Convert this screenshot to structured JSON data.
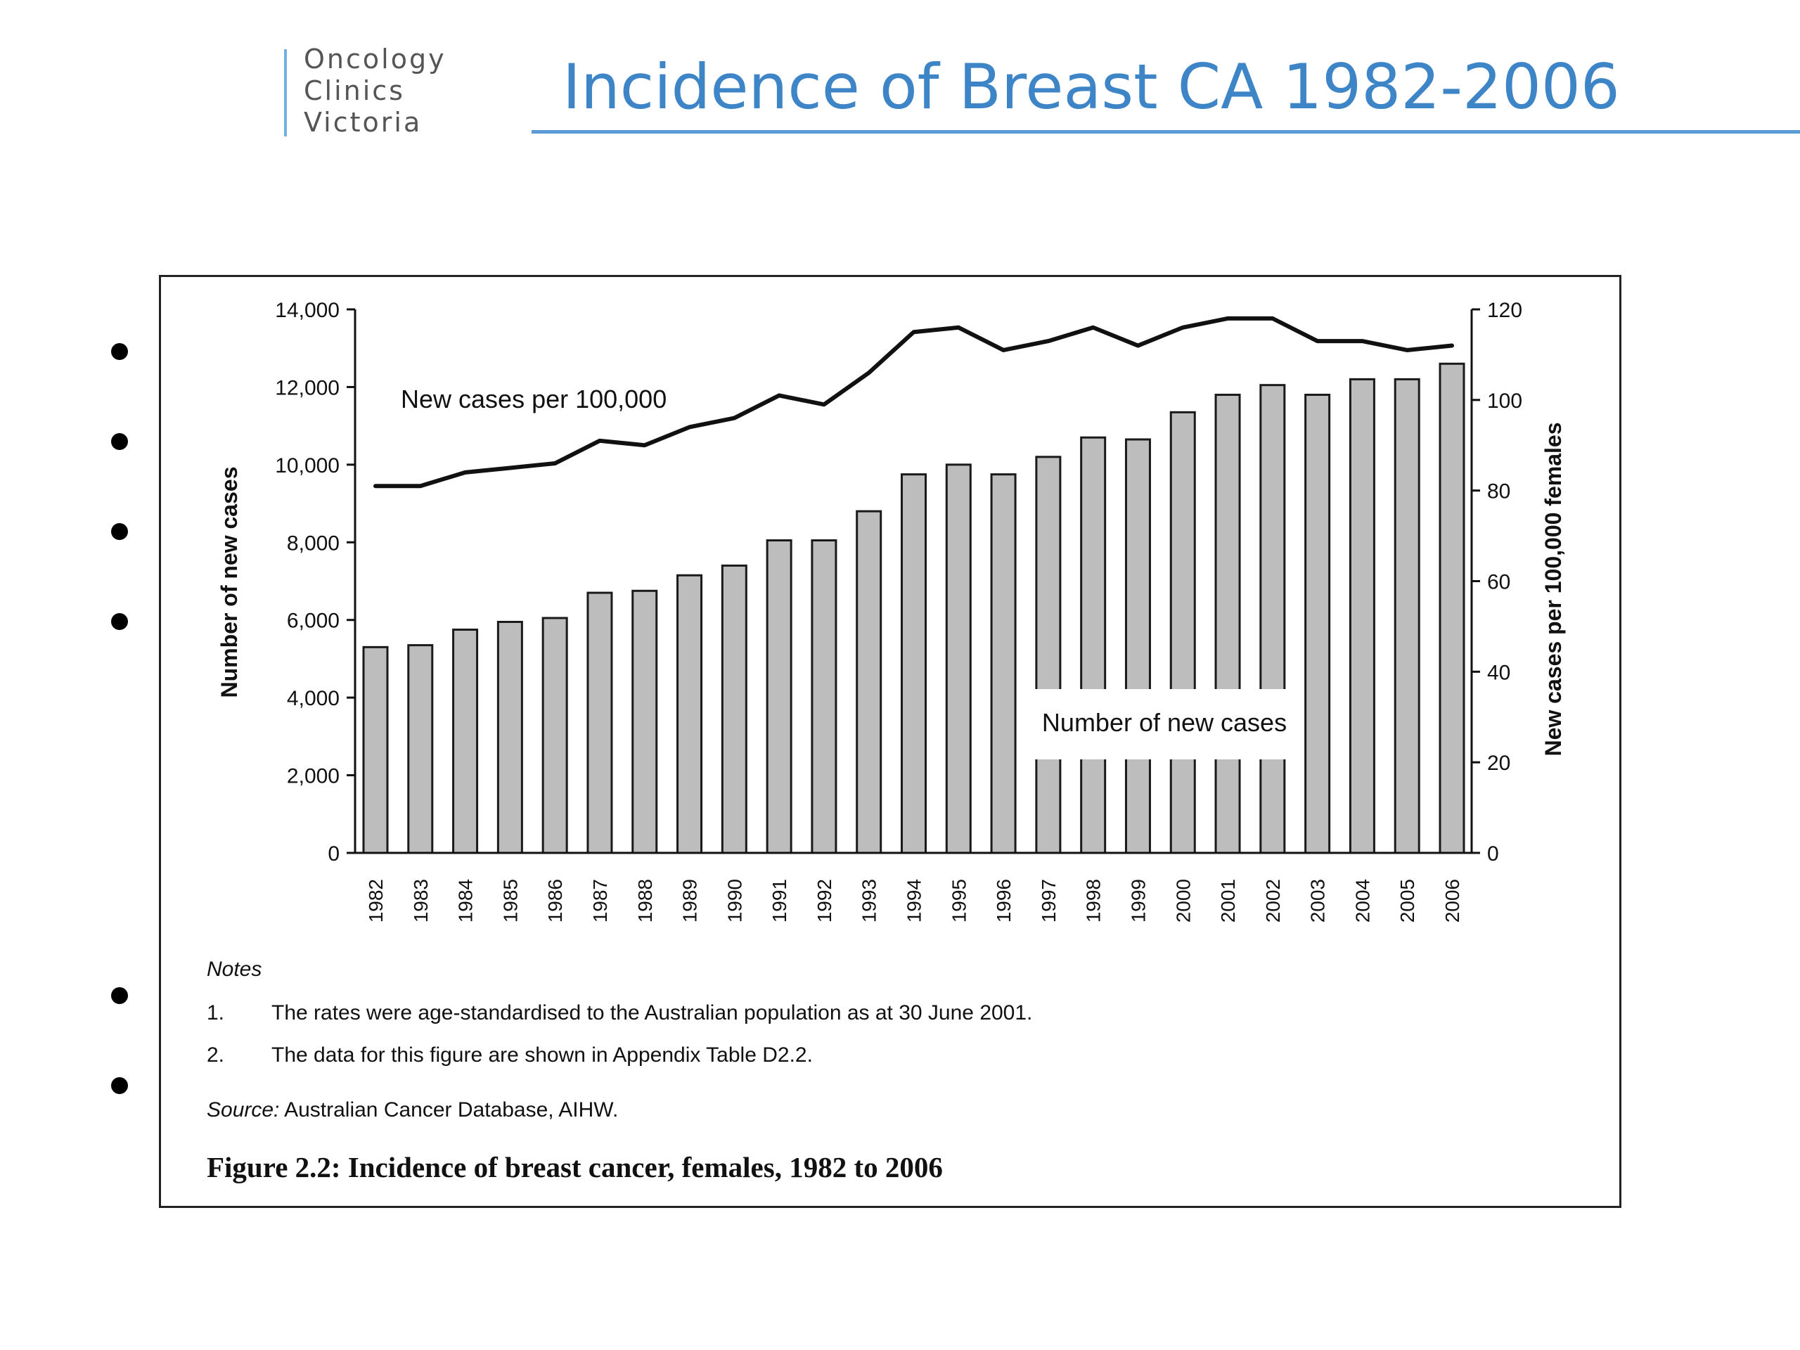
{
  "slide": {
    "logo_lines": [
      "Oncology",
      "Clinics",
      "Victoria"
    ],
    "title": "Incidence of Breast CA 1982-2006",
    "accent_color": "#3d85c6",
    "bullet_count": 6
  },
  "chart_data": {
    "type": "bar",
    "categories": [
      "1982",
      "1983",
      "1984",
      "1985",
      "1986",
      "1987",
      "1988",
      "1989",
      "1990",
      "1991",
      "1992",
      "1993",
      "1994",
      "1995",
      "1996",
      "1997",
      "1998",
      "1999",
      "2000",
      "2001",
      "2002",
      "2003",
      "2004",
      "2005",
      "2006"
    ],
    "series": [
      {
        "name": "Number of new cases",
        "type": "bar",
        "axis": "left",
        "values": [
          5300,
          5350,
          5750,
          5950,
          6050,
          6700,
          6750,
          7150,
          7400,
          8050,
          8050,
          8800,
          9750,
          10000,
          9750,
          10200,
          10700,
          10650,
          11350,
          11800,
          12050,
          11800,
          12200,
          12200,
          12600
        ]
      },
      {
        "name": "New cases per 100,000",
        "type": "line",
        "axis": "right",
        "values": [
          81,
          81,
          84,
          85,
          86,
          91,
          90,
          94,
          96,
          101,
          99,
          106,
          115,
          116,
          111,
          113,
          116,
          112,
          116,
          118,
          118,
          113,
          113,
          111,
          112
        ]
      }
    ],
    "ylabel": "Number of new cases",
    "ylim": [
      0,
      14000
    ],
    "yticks": [
      "0",
      "2,000",
      "4,000",
      "6,000",
      "8,000",
      "10,000",
      "12,000",
      "14,000"
    ],
    "y2label": "New cases per 100,000 females",
    "y2lim": [
      0,
      120
    ],
    "y2ticks": [
      "0",
      "20",
      "40",
      "60",
      "80",
      "100",
      "120"
    ],
    "bar_color": "#bdbdbd",
    "grid": false
  },
  "notes": {
    "heading": "Notes",
    "items": [
      {
        "num": "1.",
        "text": "The rates were age-standardised to the Australian population as at 30 June 2001."
      },
      {
        "num": "2.",
        "text": "The data for this figure are shown in Appendix Table D2.2."
      }
    ],
    "source_label": "Source:",
    "source_text": "Australian Cancer Database, AIHW.",
    "caption": "Figure 2.2: Incidence of breast cancer, females, 1982 to 2006"
  }
}
